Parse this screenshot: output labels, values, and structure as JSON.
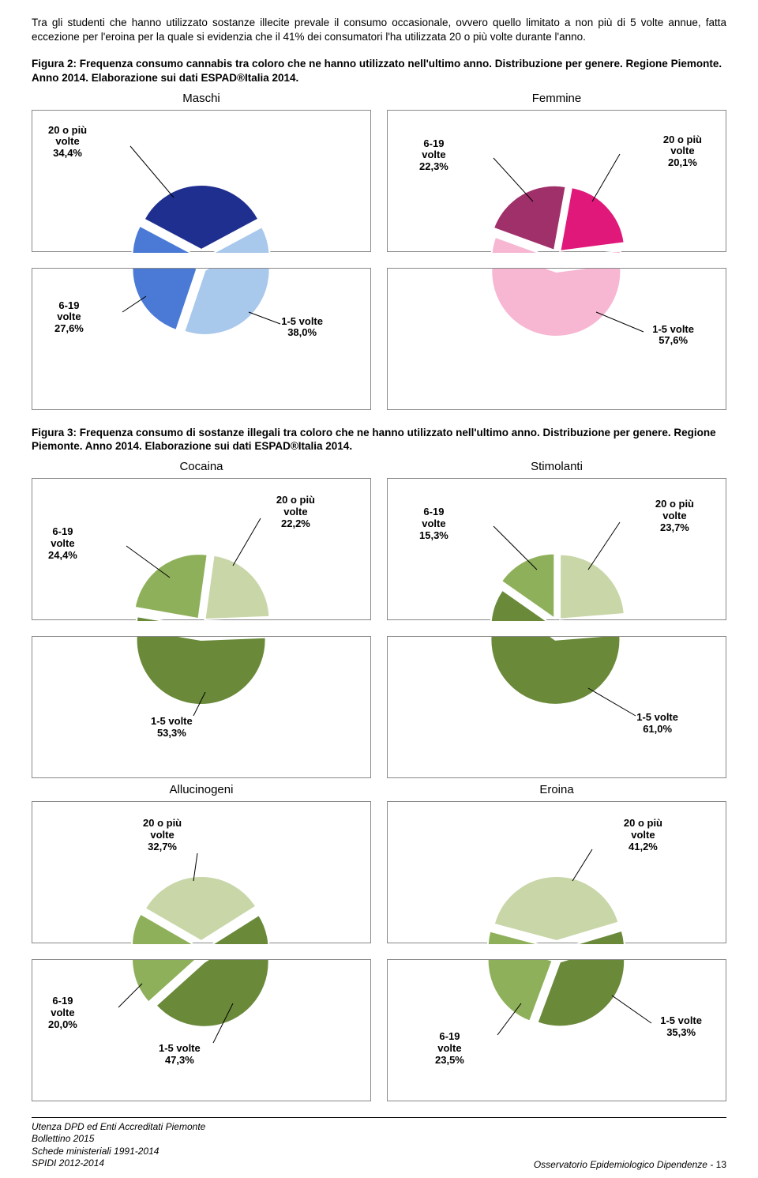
{
  "intro_text": "Tra gli studenti che hanno utilizzato sostanze illecite prevale il consumo occasionale, ovvero quello limitato a non più di 5 volte annue, fatta eccezione per l'eroina per la quale si evidenzia che il 41% dei consumatori l'ha utilizzata 20 o più volte durante l'anno.",
  "figure2_caption": "Figura 2: Frequenza consumo cannabis tra coloro che ne hanno utilizzato nell'ultimo anno. Distribuzione per genere. Regione Piemonte. Anno 2014. Elaborazione sui dati ESPAD®Italia 2014.",
  "figure3_caption": "Figura 3: Frequenza consumo di sostanze illegali tra coloro che ne hanno utilizzato nell'ultimo anno. Distribuzione per genere. Regione Piemonte. Anno 2014. Elaborazione sui dati ESPAD®Italia 2014.",
  "titles": {
    "maschi": "Maschi",
    "femmine": "Femmine",
    "cocaina": "Cocaina",
    "stimolanti": "Stimolanti",
    "allucinogeni": "Allucinogeni",
    "eroina": "Eroina"
  },
  "charts": {
    "maschi": {
      "slices": [
        {
          "label_l1": "20 o più",
          "label_l2": "volte",
          "label_l3": "34,4%",
          "value": 34.4,
          "color": "#1f2f8f"
        },
        {
          "label_l1": "6-19",
          "label_l2": "volte",
          "label_l3": "27,6%",
          "value": 27.6,
          "color": "#4a7ad6"
        },
        {
          "label_l1": "1-5 volte",
          "label_l2": "38,0%",
          "label_l3": "",
          "value": 38.0,
          "color": "#a8c8ec"
        }
      ]
    },
    "femmine": {
      "slices": [
        {
          "label_l1": "20 o più",
          "label_l2": "volte",
          "label_l3": "20,1%",
          "value": 20.1,
          "color": "#e0187a"
        },
        {
          "label_l1": "6-19",
          "label_l2": "volte",
          "label_l3": "22,3%",
          "value": 22.3,
          "color": "#a0306a"
        },
        {
          "label_l1": "1-5 volte",
          "label_l2": "57,6%",
          "label_l3": "",
          "value": 57.6,
          "color": "#f7b6d2"
        }
      ]
    },
    "cocaina": {
      "slices": [
        {
          "label_l1": "20 o più",
          "label_l2": "volte",
          "label_l3": "22,2%",
          "value": 22.2,
          "color": "#c8d6a8"
        },
        {
          "label_l1": "6-19",
          "label_l2": "volte",
          "label_l3": "24,4%",
          "value": 24.4,
          "color": "#8fb05a"
        },
        {
          "label_l1": "1-5 volte",
          "label_l2": "53,3%",
          "label_l3": "",
          "value": 53.3,
          "color": "#6a8a3a"
        }
      ]
    },
    "stimolanti": {
      "slices": [
        {
          "label_l1": "20 o più",
          "label_l2": "volte",
          "label_l3": "23,7%",
          "value": 23.7,
          "color": "#c8d6a8"
        },
        {
          "label_l1": "6-19",
          "label_l2": "volte",
          "label_l3": "15,3%",
          "value": 15.3,
          "color": "#8fb05a"
        },
        {
          "label_l1": "1-5 volte",
          "label_l2": "61,0%",
          "label_l3": "",
          "value": 61.0,
          "color": "#6a8a3a"
        }
      ]
    },
    "allucinogeni": {
      "slices": [
        {
          "label_l1": "20 o più",
          "label_l2": "volte",
          "label_l3": "32,7%",
          "value": 32.7,
          "color": "#c8d6a8"
        },
        {
          "label_l1": "6-19",
          "label_l2": "volte",
          "label_l3": "20,0%",
          "value": 20.0,
          "color": "#8fb05a"
        },
        {
          "label_l1": "1-5 volte",
          "label_l2": "47,3%",
          "label_l3": "",
          "value": 47.3,
          "color": "#6a8a3a"
        }
      ]
    },
    "eroina": {
      "slices": [
        {
          "label_l1": "20 o più",
          "label_l2": "volte",
          "label_l3": "41,2%",
          "value": 41.2,
          "color": "#c8d6a8"
        },
        {
          "label_l1": "6-19",
          "label_l2": "volte",
          "label_l3": "23,5%",
          "value": 23.5,
          "color": "#8fb05a"
        },
        {
          "label_l1": "1-5 volte",
          "label_l2": "35,3%",
          "label_l3": "",
          "value": 35.3,
          "color": "#6a8a3a"
        }
      ]
    }
  },
  "footer": {
    "l1": "Utenza DPD ed Enti Accreditati Piemonte",
    "l2": "Bollettino 2015",
    "l3": "Schede ministeriali 1991-2014",
    "l4": "SPIDI 2012-2014",
    "right": "Osservatorio Epidemiologico Dipendenze -",
    "page": "13"
  }
}
